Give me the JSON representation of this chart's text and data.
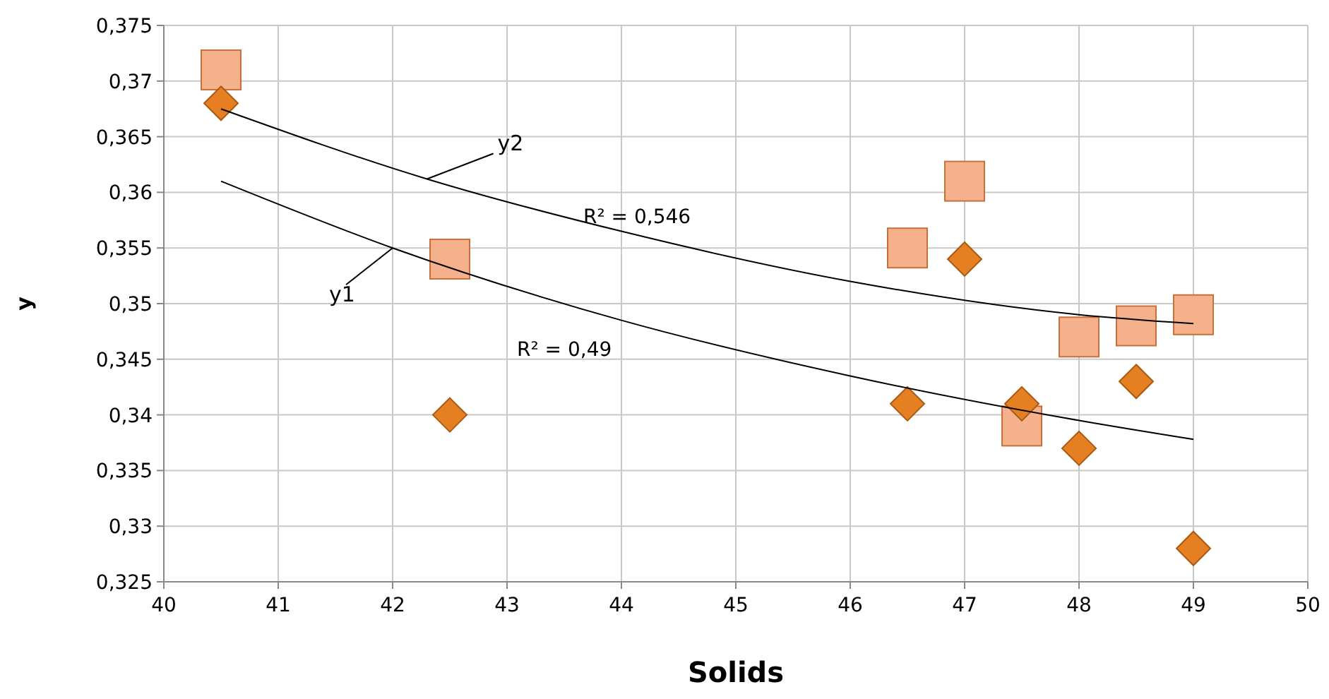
{
  "chart_data": {
    "type": "scatter",
    "xlabel": "Solids",
    "ylabel": "y",
    "xlim": [
      40,
      50
    ],
    "xticks": [
      40,
      41,
      42,
      43,
      44,
      45,
      46,
      47,
      48,
      49,
      50
    ],
    "ylim": [
      0.325,
      0.375
    ],
    "yticks": [
      {
        "value": 0.325,
        "label": "0,325"
      },
      {
        "value": 0.33,
        "label": "0,33"
      },
      {
        "value": 0.335,
        "label": "0,335"
      },
      {
        "value": 0.34,
        "label": "0,34"
      },
      {
        "value": 0.345,
        "label": "0,345"
      },
      {
        "value": 0.35,
        "label": "0,35"
      },
      {
        "value": 0.355,
        "label": "0,355"
      },
      {
        "value": 0.36,
        "label": "0,36"
      },
      {
        "value": 0.365,
        "label": "0,365"
      },
      {
        "value": 0.37,
        "label": "0,37"
      },
      {
        "value": 0.375,
        "label": "0,375"
      }
    ],
    "grid": true,
    "legend": "top left",
    "x": [
      40.5,
      42.5,
      46.5,
      47,
      47.5,
      48,
      48.5,
      49
    ],
    "series": [
      {
        "marker": "square",
        "color": "#f5b08c",
        "values": [
          0.371,
          0.354,
          0.355,
          0.361,
          0.339,
          0.347,
          0.348,
          0.349
        ]
      },
      {
        "marker": "diamond",
        "color": "#e57f22",
        "values": [
          0.368,
          0.34,
          0.341,
          0.354,
          0.341,
          0.337,
          0.343,
          0.328
        ]
      },
      {
        "type": "line",
        "name": "y1",
        "color": "#000000",
        "x": [
          40.5,
          42,
          44,
          46,
          48,
          49
        ],
        "values": [
          0.361,
          0.355,
          0.3485,
          0.3435,
          0.3395,
          0.3378
        ]
      },
      {
        "type": "line",
        "name": "y2",
        "color": "#000000",
        "x": [
          40.5,
          42.3,
          44,
          46,
          48,
          49
        ],
        "values": [
          0.3675,
          0.3612,
          0.3565,
          0.352,
          0.349,
          0.3482
        ]
      }
    ],
    "annotations": [
      "R² = 0,546",
      "R² = 0,49"
    ]
  }
}
